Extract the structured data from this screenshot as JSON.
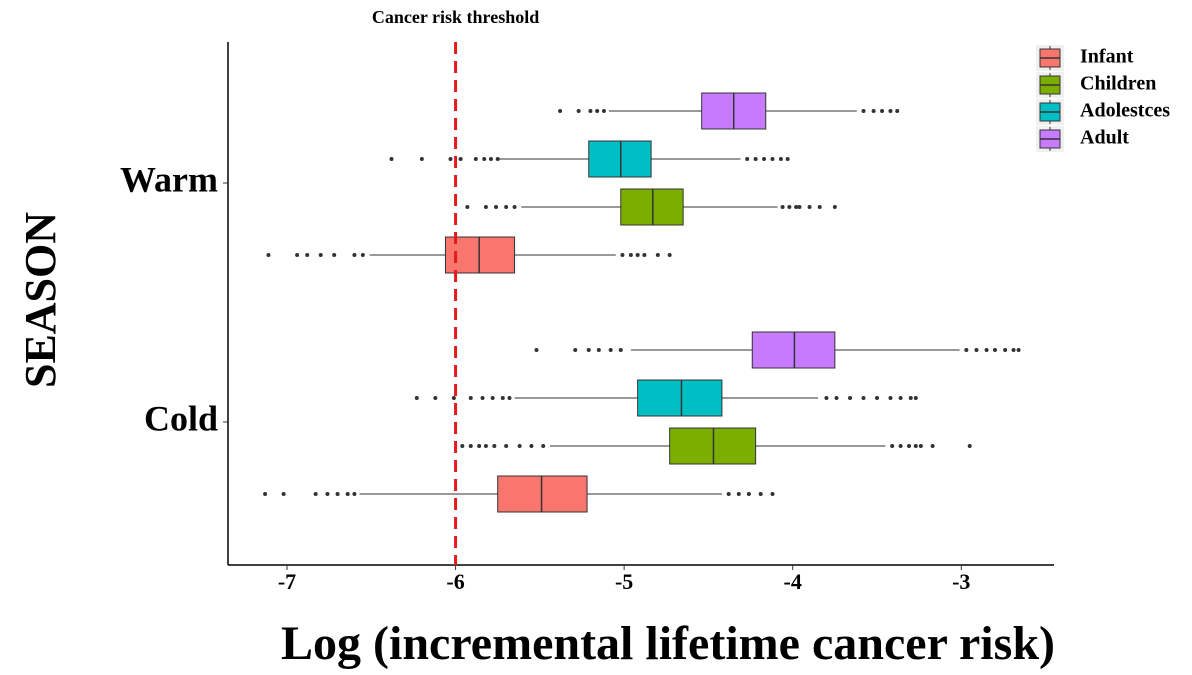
{
  "chart_data": {
    "type": "boxplot",
    "orientation": "horizontal",
    "xlabel": "Log (incremental lifetime cancer risk)",
    "ylabel": "SEASON",
    "categories": [
      "Cold",
      "Warm"
    ],
    "xlim": [
      -7.35,
      -2.45
    ],
    "xticks": [
      -7,
      -6,
      -5,
      -4,
      -3
    ],
    "threshold": {
      "value": -6,
      "label": "Cancer risk threshold",
      "color": "#e41a1c"
    },
    "series": [
      {
        "name": "Infant",
        "color": "#F8766D",
        "boxes": [
          {
            "low": -6.57,
            "q1": -5.75,
            "median": -5.49,
            "q3": -5.22,
            "high": -4.42,
            "outliers": [
              -7.13,
              -7.02,
              -6.83,
              -6.76,
              -6.7,
              -6.64,
              -6.6,
              -4.38,
              -4.32,
              -4.26,
              -4.19,
              -4.12
            ]
          },
          {
            "low": -6.51,
            "q1": -6.06,
            "median": -5.86,
            "q3": -5.65,
            "high": -5.05,
            "outliers": [
              -7.11,
              -6.94,
              -6.88,
              -6.8,
              -6.72,
              -6.6,
              -6.55,
              -5.01,
              -4.96,
              -4.92,
              -4.88,
              -4.8,
              -4.73
            ]
          }
        ]
      },
      {
        "name": "Children",
        "color": "#7CAE00",
        "boxes": [
          {
            "low": -5.44,
            "q1": -4.73,
            "median": -4.47,
            "q3": -4.22,
            "high": -3.45,
            "outliers": [
              -5.96,
              -5.91,
              -5.86,
              -5.82,
              -5.77,
              -5.7,
              -5.62,
              -5.55,
              -5.48,
              -3.41,
              -3.36,
              -3.31,
              -3.27,
              -3.24,
              -3.17,
              -2.95
            ]
          },
          {
            "low": -5.61,
            "q1": -5.02,
            "median": -4.83,
            "q3": -4.65,
            "high": -4.09,
            "outliers": [
              -5.93,
              -5.82,
              -5.76,
              -5.7,
              -5.65,
              -4.06,
              -4.02,
              -3.98,
              -3.96,
              -3.9,
              -3.84,
              -3.75
            ]
          }
        ]
      },
      {
        "name": "Adolestces",
        "color": "#00BFC4",
        "boxes": [
          {
            "low": -5.65,
            "q1": -4.92,
            "median": -4.66,
            "q3": -4.42,
            "high": -3.85,
            "outliers": [
              -6.23,
              -6.12,
              -6.01,
              -5.91,
              -5.84,
              -5.78,
              -5.72,
              -5.68,
              -3.8,
              -3.74,
              -3.66,
              -3.58,
              -3.5,
              -3.42,
              -3.36,
              -3.3,
              -3.27
            ]
          },
          {
            "low": -5.74,
            "q1": -5.21,
            "median": -5.02,
            "q3": -4.84,
            "high": -4.31,
            "outliers": [
              -6.38,
              -6.2,
              -6.03,
              -5.97,
              -5.88,
              -5.83,
              -5.79,
              -5.75,
              -4.27,
              -4.22,
              -4.17,
              -4.12,
              -4.07,
              -4.03
            ]
          }
        ]
      },
      {
        "name": "Adult",
        "color": "#C77CFF",
        "boxes": [
          {
            "low": -4.96,
            "q1": -4.24,
            "median": -3.99,
            "q3": -3.75,
            "high": -3.01,
            "outliers": [
              -5.52,
              -5.29,
              -5.21,
              -5.15,
              -5.08,
              -5.02,
              -2.97,
              -2.91,
              -2.85,
              -2.8,
              -2.74,
              -2.69,
              -2.66
            ]
          },
          {
            "low": -5.09,
            "q1": -4.54,
            "median": -4.35,
            "q3": -4.16,
            "high": -3.62,
            "outliers": [
              -5.38,
              -5.27,
              -5.2,
              -5.16,
              -5.12,
              -3.58,
              -3.52,
              -3.47,
              -3.42,
              -3.38
            ]
          }
        ]
      }
    ]
  }
}
